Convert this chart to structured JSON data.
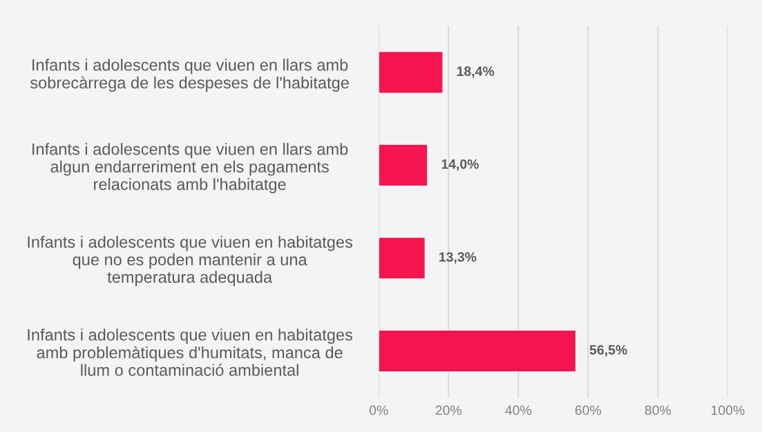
{
  "chart_data": {
    "type": "bar",
    "orientation": "horizontal",
    "categories": [
      "Infants i adolescents que viuen en llars amb\nsobrecàrrega de les despeses de l'habitatge",
      "Infants i adolescents que viuen en llars amb\nalgun endarreriment en els pagaments\nrelacionats amb l'habitatge",
      "Infants i adolescents que viuen en habitatges\nque no es poden mantenir a una\ntemperatura adequada",
      "Infants i adolescents que viuen en habitatges\namb problemàtiques d'humitats, manca de\nllum o contaminació ambiental"
    ],
    "values": [
      18.4,
      14.0,
      13.3,
      56.5
    ],
    "value_labels": [
      "18,4%",
      "14,0%",
      "13,3%",
      "56,5%"
    ],
    "color": "#f5154f",
    "xlim": [
      0,
      100
    ],
    "xticks": [
      {
        "value": 0,
        "label": "0%"
      },
      {
        "value": 20,
        "label": "20%"
      },
      {
        "value": 40,
        "label": "40%"
      },
      {
        "value": 60,
        "label": "60%"
      },
      {
        "value": 80,
        "label": "80%"
      },
      {
        "value": 100,
        "label": "100%"
      }
    ],
    "grid": "x"
  }
}
